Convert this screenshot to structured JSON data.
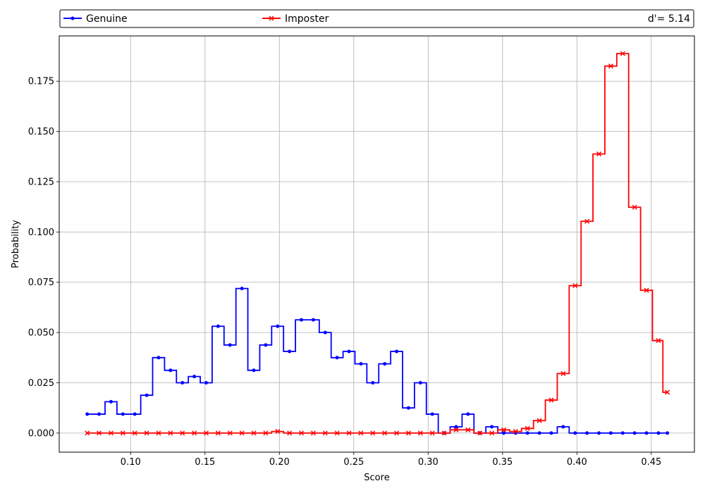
{
  "chart_data": {
    "type": "line",
    "drawstyle": "steps-mid",
    "xlabel": "Score",
    "ylabel": "Probability",
    "xlim": [
      0.052,
      0.479
    ],
    "ylim": [
      -0.0095,
      0.1975
    ],
    "xticks": [
      0.1,
      0.15,
      0.2,
      0.25,
      0.3,
      0.35,
      0.4,
      0.45
    ],
    "xtick_labels": [
      "0.10",
      "0.15",
      "0.20",
      "0.25",
      "0.30",
      "0.35",
      "0.40",
      "0.45"
    ],
    "yticks": [
      0.0,
      0.025,
      0.05,
      0.075,
      0.1,
      0.125,
      0.15,
      0.175
    ],
    "ytick_labels": [
      "0.000",
      "0.025",
      "0.050",
      "0.075",
      "0.100",
      "0.125",
      "0.150",
      "0.175"
    ],
    "grid": true,
    "legend_position": "above plot",
    "annotation": "d'= 5.14",
    "x": [
      0.0708,
      0.0788,
      0.0868,
      0.0948,
      0.1028,
      0.1108,
      0.1188,
      0.1268,
      0.1348,
      0.1428,
      0.1508,
      0.1588,
      0.1668,
      0.1748,
      0.1828,
      0.1908,
      0.1988,
      0.2068,
      0.2148,
      0.2228,
      0.2308,
      0.2388,
      0.2468,
      0.2548,
      0.2628,
      0.2708,
      0.2788,
      0.2868,
      0.2948,
      0.3028,
      0.3108,
      0.3188,
      0.3268,
      0.3348,
      0.3428,
      0.3508,
      0.3588,
      0.3668,
      0.3748,
      0.3828,
      0.3908,
      0.3988,
      0.4068,
      0.4148,
      0.4228,
      0.4308,
      0.4388,
      0.4468,
      0.4548,
      0.4608
    ],
    "series": [
      {
        "name": "Genuine",
        "color": "#0000ff",
        "marker": "dot",
        "values": [
          0.0094,
          0.0094,
          0.0156,
          0.0094,
          0.0094,
          0.0188,
          0.0375,
          0.0312,
          0.025,
          0.0281,
          0.025,
          0.0531,
          0.0438,
          0.0719,
          0.0312,
          0.0438,
          0.0531,
          0.0406,
          0.0563,
          0.0563,
          0.05,
          0.0375,
          0.0406,
          0.0344,
          0.025,
          0.0344,
          0.0406,
          0.0125,
          0.025,
          0.0094,
          0.0,
          0.0031,
          0.0094,
          0.0,
          0.0031,
          0.0,
          0.0,
          0.0,
          0.0,
          0.0,
          0.0031,
          0.0,
          0.0,
          0.0,
          0.0,
          0.0,
          0.0,
          0.0,
          0.0,
          0.0
        ]
      },
      {
        "name": "Imposter",
        "color": "#ff0000",
        "marker": "x",
        "values": [
          0.0,
          0.0,
          0.0,
          0.0,
          0.0,
          0.0,
          0.0,
          0.0,
          0.0,
          0.0,
          0.0,
          0.0,
          0.0,
          0.0,
          0.0,
          0.0,
          0.0008,
          0.0,
          0.0,
          0.0,
          0.0,
          0.0,
          0.0,
          0.0,
          0.0,
          0.0,
          0.0,
          0.0,
          0.0,
          0.0,
          0.0,
          0.0016,
          0.0016,
          0.0,
          0.0,
          0.0016,
          0.0008,
          0.0023,
          0.0062,
          0.0164,
          0.0296,
          0.0733,
          0.1053,
          0.1388,
          0.1825,
          0.1887,
          0.1123,
          0.071,
          0.046,
          0.0203
        ]
      }
    ]
  }
}
